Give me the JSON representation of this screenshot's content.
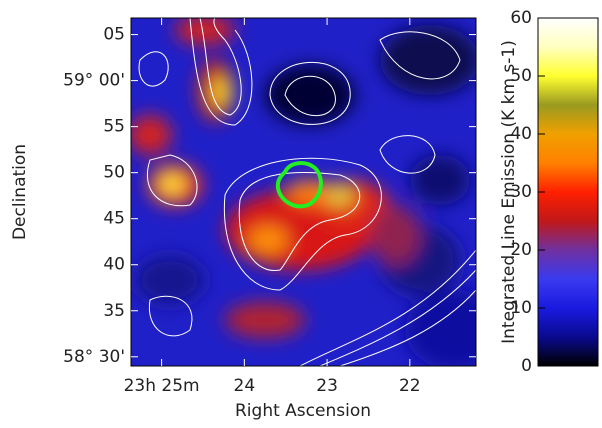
{
  "chart_data": {
    "type": "heatmap",
    "x_label": "Right Ascension",
    "y_label": "Declination",
    "xlim": [
      25.37,
      21.2
    ],
    "xticks": [
      {
        "value": 25,
        "label": "23h 25m"
      },
      24,
      23,
      22
    ],
    "ylim": [
      29,
      66.8
    ],
    "yticks": [
      {
        "value": 65,
        "label": "05"
      },
      {
        "value": 60,
        "label": "59° 00'"
      },
      55,
      50,
      45,
      40,
      35,
      {
        "value": 30,
        "label": "58° 30'"
      }
    ],
    "colorbar": {
      "label": "Integrated Line Emission (K km s-1)",
      "lim": [
        0,
        60
      ],
      "ticks": [
        0,
        10,
        20,
        30,
        40,
        50,
        60
      ],
      "colors": [
        "#000000",
        "#0a0a90",
        "#1a1ae0",
        "#3a3af0",
        "#7030a0",
        "#c01818",
        "#ff2000",
        "#ff8000",
        "#f0a000",
        "#9a9a20",
        "#ffff30",
        "#ffffc0",
        "#ffffff"
      ]
    }
  }
}
